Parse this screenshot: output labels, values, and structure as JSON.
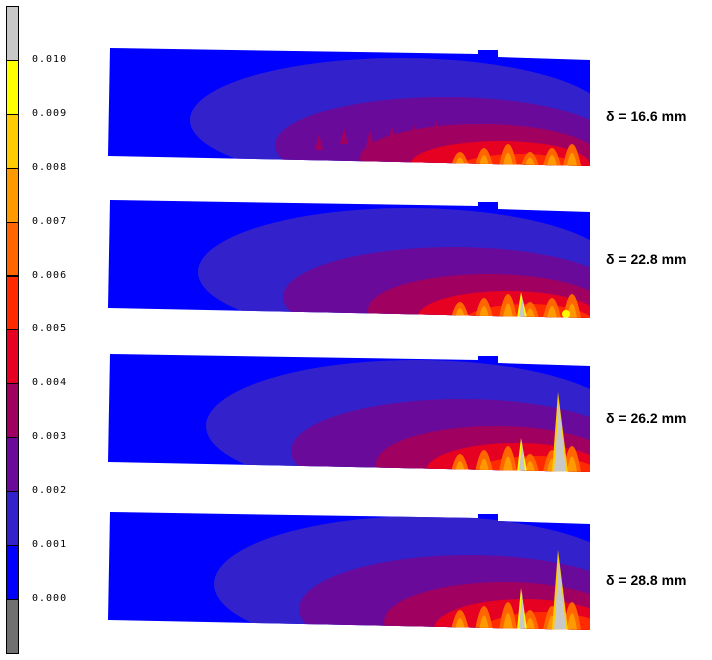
{
  "legend": {
    "colors": [
      "#c8c8c8",
      "#ffff00",
      "#ffcc00",
      "#ff9900",
      "#ff6600",
      "#ff2a00",
      "#e60022",
      "#a00060",
      "#6a0a9a",
      "#3322cc",
      "#0000ff",
      "#707070"
    ],
    "labels": [
      "0.010",
      "0.009",
      "0.008",
      "0.007",
      "0.006",
      "0.005",
      "0.004",
      "0.003",
      "0.002",
      "0.001",
      "0.000"
    ]
  },
  "panels": [
    {
      "delta_label": "δ = 16.6 mm"
    },
    {
      "delta_label": "δ = 22.8 mm"
    },
    {
      "delta_label": "δ = 26.2 mm"
    },
    {
      "delta_label": "δ = 28.8 mm"
    }
  ]
}
